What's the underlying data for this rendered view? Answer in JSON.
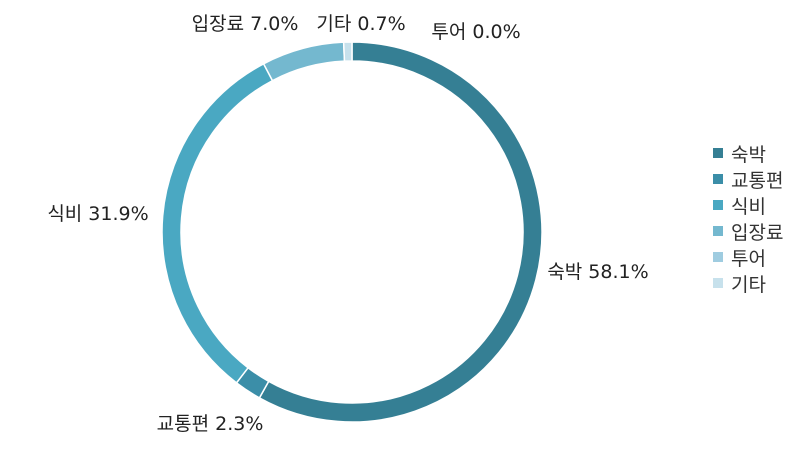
{
  "chart_data": {
    "type": "pie",
    "donut": true,
    "title": "",
    "legend_position": "right",
    "slices": [
      {
        "name": "숙박",
        "value": 58.1,
        "label": "숙박 58.1%",
        "color": "#357f94"
      },
      {
        "name": "교통편",
        "value": 2.3,
        "label": "교통편 2.3%",
        "color": "#3b8ea8"
      },
      {
        "name": "식비",
        "value": 31.9,
        "label": "식비 31.9%",
        "color": "#4aa8c2"
      },
      {
        "name": "입장료",
        "value": 7.0,
        "label": "입장료 7.0%",
        "color": "#74b8cf"
      },
      {
        "name": "투어",
        "value": 0.0,
        "label": "투어 0.0%",
        "color": "#9fcce0"
      },
      {
        "name": "기타",
        "value": 0.7,
        "label": "기타 0.7%",
        "color": "#c7e1ec"
      }
    ]
  }
}
